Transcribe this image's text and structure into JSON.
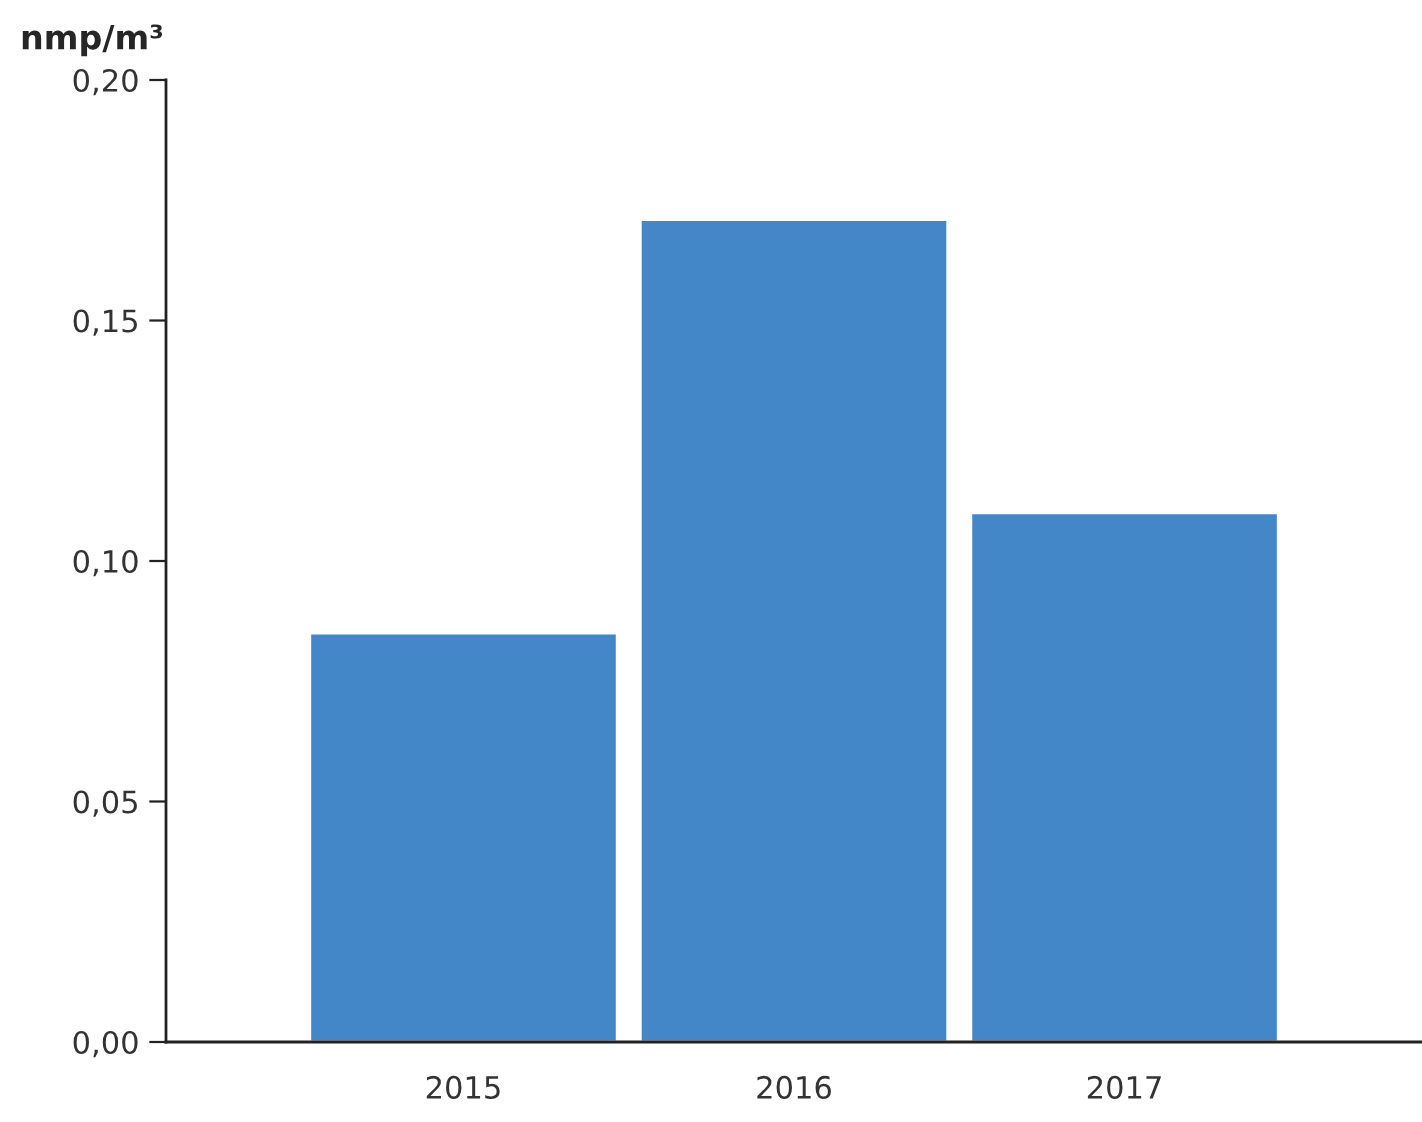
{
  "chart_data": {
    "type": "bar",
    "ylabel": "nmp/m³",
    "categories": [
      "2015",
      "2016",
      "2017"
    ],
    "values": [
      0.085,
      0.171,
      0.11
    ],
    "color": "#4387c8",
    "ylim": [
      0,
      0.2
    ],
    "yticks": [
      {
        "value": 0,
        "label": "0,00"
      },
      {
        "value": 0.05,
        "label": "0,05"
      },
      {
        "value": 0.1,
        "label": "0,10"
      },
      {
        "value": 0.15,
        "label": "0,15"
      },
      {
        "value": 0.2,
        "label": "0,20"
      }
    ],
    "grid": false,
    "legend": false
  }
}
